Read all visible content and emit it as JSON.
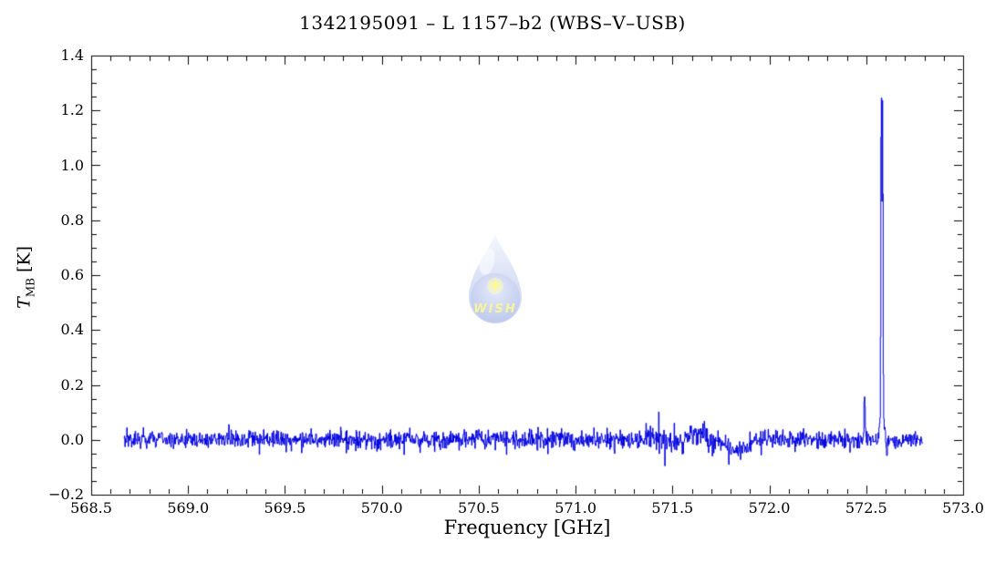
{
  "figure": {
    "title": "1342195091 – L 1157–b2 (WBS–V–USB)",
    "x_axis_label": "Frequency [GHz]",
    "y_axis_label": {
      "symbol": "T",
      "subscript": "MB",
      "unit": "[K]"
    },
    "watermark": {
      "text": "WISH",
      "star": "✶",
      "drop_top_color": "#eef2fc",
      "drop_mid_color": "#c2cdf0",
      "drop_bottom_color": "#9fb0e6",
      "sphere_color": "#92a5e0",
      "accent_yellow": "#f6ee3c",
      "opacity": 0.55
    },
    "background_color": "#ffffff"
  },
  "chart_data": {
    "type": "line",
    "title": "1342195091 – L 1157–b2 (WBS–V–USB)",
    "xlabel": "Frequency [GHz]",
    "ylabel": "T_MB [K]",
    "line_color": "#0000e0",
    "axis_color": "#000000",
    "grid": false,
    "legend": null,
    "xlim": [
      568.5,
      573.0
    ],
    "ylim": [
      -0.2,
      1.4
    ],
    "x_tick_values": [
      568.5,
      569.0,
      569.5,
      570.0,
      570.5,
      571.0,
      571.5,
      572.0,
      572.5,
      573.0
    ],
    "x_tick_labels": [
      "568.5",
      "569.0",
      "569.5",
      "570.0",
      "570.5",
      "571.0",
      "571.5",
      "572.0",
      "572.5",
      "573.0"
    ],
    "y_tick_values": [
      -0.2,
      0.0,
      0.2,
      0.4,
      0.6,
      0.8,
      1.0,
      1.2,
      1.4
    ],
    "y_tick_labels": [
      "−0.2",
      "0.0",
      "0.2",
      "0.4",
      "0.6",
      "0.8",
      "1.0",
      "1.2",
      "1.4"
    ],
    "x_minor_tick_step": 0.1,
    "y_minor_tick_step": 0.05,
    "spectrum": {
      "data_x_range_GHz": [
        568.67,
        572.79
      ],
      "n_channels": 1700,
      "baseline_level_K": 0.0,
      "noise_sigma_K": 0.017,
      "noise_seed": 20110915,
      "main_line_center_GHz": 572.58,
      "main_line_peak_K": 1.33,
      "emission_lines": [
        {
          "center_GHz": 572.578,
          "sigma_GHz": 0.0022,
          "peak_K": 1.2
        },
        {
          "center_GHz": 572.5845,
          "sigma_GHz": 0.0021,
          "peak_K": 1.13
        },
        {
          "center_GHz": 572.582,
          "sigma_GHz": 0.009,
          "peak_K": 0.12
        },
        {
          "center_GHz": 572.492,
          "sigma_GHz": 0.003,
          "peak_K": 0.17
        }
      ],
      "baseline_features": [
        {
          "center_GHz": 571.62,
          "sigma_GHz": 0.05,
          "amp_K": 0.02
        },
        {
          "center_GHz": 571.83,
          "sigma_GHz": 0.055,
          "amp_K": -0.038
        },
        {
          "center_GHz": 572.605,
          "sigma_GHz": 0.003,
          "amp_K": -0.06
        }
      ],
      "noisy_region": {
        "range_GHz": [
          571.35,
          571.72
        ],
        "sigma_multiplier": 1.5
      },
      "spikes": [
        {
          "x_GHz": 571.462,
          "value_K": -0.095
        },
        {
          "x_GHz": 571.79,
          "value_K": -0.09
        }
      ],
      "clip_max_K": 1.335
    }
  }
}
